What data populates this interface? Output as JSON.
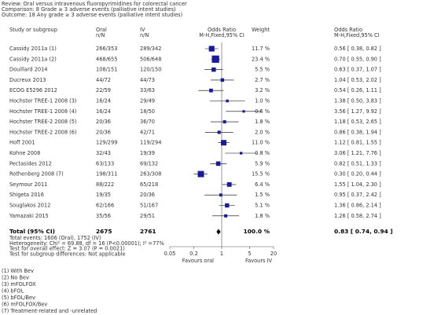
{
  "chart_data": {
    "type": "forest",
    "review": "Review:   Oral versus intravenous fluoropyrimidines for colorectal cancer",
    "comparison": "Comparison:   8 Grade ≥ 3 adverse events (palliative intent studies)",
    "outcome": "Outcome:   18 Any grade ≥ 3 adverse events (palliative intent studies)",
    "columns": [
      {
        "title": "Study or subgroup"
      },
      {
        "title": "Oral",
        "sub": "n/N"
      },
      {
        "title": "IV",
        "sub": "n/N"
      },
      {
        "title": "Odds Ratio",
        "sub": "M-H,Fixed,95% CI"
      },
      {
        "title": "Weight"
      },
      {
        "title": "Odds Ratio",
        "sub": "M-H,Fixed,95% CI"
      }
    ],
    "categories": [
      "Cassidy 2011a (1)",
      "Cassidy 2011a (2)",
      "Douillard 2014",
      "Ducreux 2013",
      "ECOG E5296 2012",
      "Hochster TREE-1 2008 (3)",
      "Hochster TREE-1 2008 (4)",
      "Hochster TREE-2 2008 (5)",
      "Hochster TREE-2 2008 (6)",
      "Hoff 2001",
      "Kohne 2008",
      "Pectasides 2012",
      "Rothenberg 2008 (7)",
      "Seymour 2011",
      "Shigeta 2016",
      "Souglakos 2012",
      "Yamazaki 2015"
    ],
    "oral": [
      "266/353",
      "468/655",
      "108/151",
      "44/72",
      "22/59",
      "16/24",
      "16/24",
      "20/36",
      "20/36",
      "129/299",
      "32/43",
      "63/133",
      "198/311",
      "88/222",
      "19/35",
      "62/166",
      "35/56"
    ],
    "iv": [
      "289/342",
      "506/648",
      "120/150",
      "44/73",
      "33/63",
      "29/49",
      "18/50",
      "36/70",
      "42/71",
      "119/294",
      "19/39",
      "69/132",
      "263/308",
      "65/218",
      "20/36",
      "51/167",
      "29/51"
    ],
    "weights": [
      11.7,
      23.4,
      5.5,
      2.7,
      3.2,
      1.0,
      0.6,
      1.8,
      2.0,
      11.0,
      0.8,
      5.9,
      15.5,
      6.4,
      1.5,
      5.1,
      1.8
    ],
    "weight_labels": [
      "11.7 %",
      "23.4 %",
      "5.5 %",
      "2.7 %",
      "3.2 %",
      "1.0 %",
      "0.6 %",
      "1.8 %",
      "2.0 %",
      "11.0 %",
      "0.8 %",
      "5.9 %",
      "15.5 %",
      "6.4 %",
      "1.5 %",
      "5.1 %",
      "1.8 %"
    ],
    "values": [
      0.56,
      0.7,
      0.63,
      1.04,
      0.54,
      1.38,
      3.56,
      1.18,
      0.86,
      1.12,
      3.06,
      0.82,
      0.3,
      1.55,
      0.95,
      1.36,
      1.26
    ],
    "lower": [
      0.38,
      0.55,
      0.37,
      0.53,
      0.26,
      0.5,
      1.27,
      0.53,
      0.38,
      0.81,
      1.21,
      0.51,
      0.2,
      1.04,
      0.37,
      0.86,
      0.58
    ],
    "upper": [
      0.82,
      0.9,
      1.07,
      2.02,
      1.11,
      3.83,
      9.92,
      2.65,
      1.94,
      1.55,
      7.76,
      1.33,
      0.44,
      2.3,
      2.42,
      2.14,
      2.74
    ],
    "value_labels": [
      "0.56 [ 0.38, 0.82 ]",
      "0.70 [ 0.55, 0.90 ]",
      "0.63 [ 0.37, 1.07 ]",
      "1.04 [ 0.53, 2.02 ]",
      "0.54 [ 0.26, 1.11 ]",
      "1.38 [ 0.50, 3.83 ]",
      "3.56 [ 1.27, 9.92 ]",
      "1.18 [ 0.53, 2.65 ]",
      "0.86 [ 0.38, 1.94 ]",
      "1.12 [ 0.81, 1.55 ]",
      "3.06 [ 1.21, 7.76 ]",
      "0.82 [ 0.51, 1.33 ]",
      "0.30 [ 0.20, 0.44 ]",
      "1.55 [ 1.04, 2.30 ]",
      "0.95 [ 0.37, 2.42 ]",
      "1.36 [ 0.86, 2.14 ]",
      "1.26 [ 0.58, 2.74 ]"
    ],
    "total": {
      "label": "Total (95% CI)",
      "oral": 2675,
      "iv": 2761,
      "weight": 100.0,
      "weight_label": "100.0 %",
      "value": 0.83,
      "lower": 0.74,
      "upper": 0.94,
      "value_label": "0.83 [ 0.74, 0.94 ]"
    },
    "notes": [
      "Total events: 1606 (Oral), 1752 (IV)",
      "Heterogeneity: Chi² = 69.88, df = 16 (P<0.00001); I² =77%",
      "Test for overall effect: Z = 3.07 (P = 0.0021)",
      "Test for subgroup differences: Not applicable"
    ],
    "xlim": [
      0.05,
      20
    ],
    "xticks": [
      0.05,
      0.2,
      1,
      5,
      20
    ],
    "log_scale": true,
    "reference": 1,
    "favours_left": "Favours oral",
    "favours_right": "Favours IV",
    "footnotes": [
      "(1) With Bev",
      "(2) No Bev",
      "(3) mFOLFOX",
      "(4) bFOL",
      "(5) bFOL/Bev",
      "(6) mFOLFOX/Bev",
      "(7) Treatment-related and -unrelated"
    ],
    "color": "#1a1a9e"
  }
}
